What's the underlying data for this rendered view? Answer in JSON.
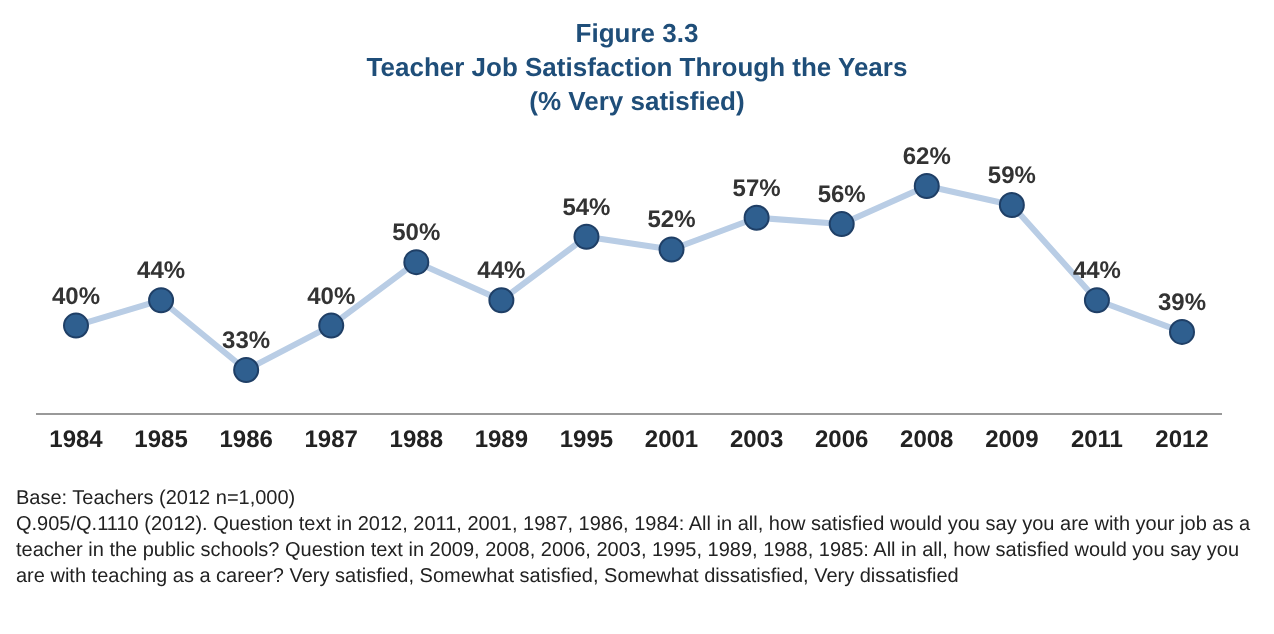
{
  "chart_data": {
    "type": "line",
    "title": "Figure 3.3",
    "subtitle": "Teacher Job Satisfaction Through the Years\n(% Very satisfied)",
    "categories": [
      "1984",
      "1985",
      "1986",
      "1987",
      "1988",
      "1989",
      "1995",
      "2001",
      "2003",
      "2006",
      "2008",
      "2009",
      "2011",
      "2012"
    ],
    "series": [
      {
        "color": "#b9cde5",
        "values": [
          40,
          44,
          33,
          40,
          50,
          44,
          54,
          52,
          57,
          56,
          62,
          59,
          44,
          39
        ],
        "value_labels": [
          "40%",
          "44%",
          "33%",
          "40%",
          "50%",
          "44%",
          "54%",
          "52%",
          "57%",
          "56%",
          "62%",
          "59%",
          "44%",
          "39%"
        ]
      }
    ],
    "marker": "circle",
    "line_style": "solid",
    "tick_labels": "x",
    "annotations": [
      "Base: Teachers (2012 n=1,000)",
      "Q.905/Q.1110 (2012). Question text in 2012, 2011, 2001, 1987, 1986, 1984: All in all, how satisfied would you say you are with your job as a teacher in the public schools? Question text in 2009, 2008, 2006, 2003, 1995, 1989, 1988, 1985: All in all, how satisfied would you say you are with teaching as a career?  Very satisfied, Somewhat satisfied, Somewhat dissatisfied, Very dissatisfied"
    ]
  }
}
